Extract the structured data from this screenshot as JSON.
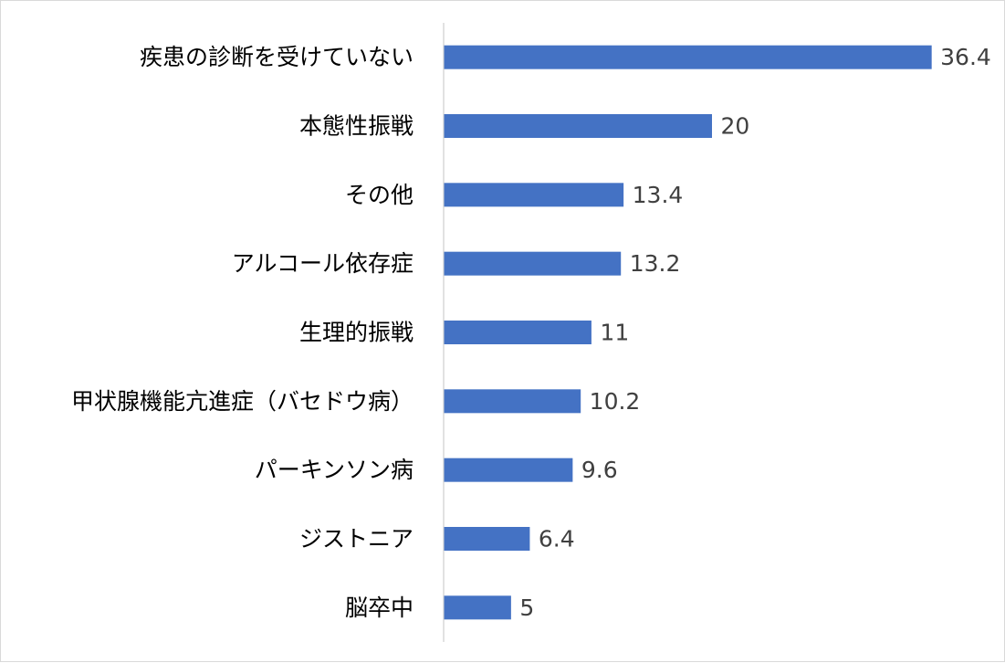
{
  "chart_data": {
    "type": "bar",
    "orientation": "horizontal",
    "categories": [
      "疾患の診断を受けていない",
      "本態性振戦",
      "その他",
      "アルコール依存症",
      "生理的振戦",
      "甲状腺機能亢進症（バセドウ病）",
      "パーキンソン病",
      "ジストニア",
      "脳卒中"
    ],
    "values": [
      36.4,
      20,
      13.4,
      13.2,
      11,
      10.2,
      9.6,
      6.4,
      5
    ],
    "value_labels": [
      "36.4",
      "20",
      "13.4",
      "13.2",
      "11",
      "10.2",
      "9.6",
      "6.4",
      "5"
    ],
    "xlim": [
      0,
      40
    ],
    "data_labels": true,
    "grid": false,
    "legend": "none",
    "bar_color": "#4472c4",
    "axis_color": "#d9d9d9",
    "value_label_color": "#404040"
  }
}
